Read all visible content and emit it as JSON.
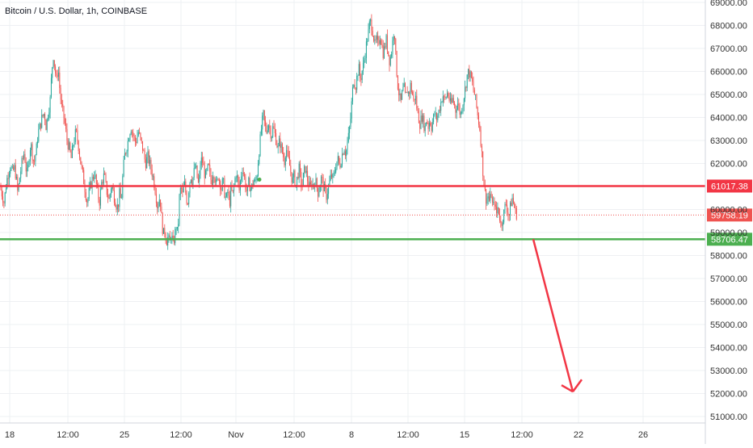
{
  "header": {
    "title": "Bitcoin / U.S. Dollar, 1h, COINBASE"
  },
  "colors": {
    "up": "#26a69a",
    "down": "#ef5350",
    "resistance": "#f23645",
    "support": "#4caf50",
    "grid": "#eef0f3",
    "axis_text": "#333333",
    "current_price_label": "#ef5350"
  },
  "chart_data": {
    "type": "candlestick",
    "title": "Bitcoin / U.S. Dollar, 1h, COINBASE",
    "xlabel": "",
    "ylabel": "",
    "ylim": [
      50800,
      69200
    ],
    "grid": true,
    "x_ticks": [
      "18",
      "12:00",
      "25",
      "12:00",
      "Nov",
      "12:00",
      "8",
      "12:00",
      "15",
      "12:00",
      "22",
      "26"
    ],
    "y_ticks": [
      {
        "value": 51000,
        "label": "51000.00"
      },
      {
        "value": 52000,
        "label": "52000.00"
      },
      {
        "value": 53000,
        "label": "53000.00"
      },
      {
        "value": 54000,
        "label": "54000.00"
      },
      {
        "value": 55000,
        "label": "55000.00"
      },
      {
        "value": 56000,
        "label": "56000.00"
      },
      {
        "value": 57000,
        "label": "57000.00"
      },
      {
        "value": 58000,
        "label": "58000.00"
      },
      {
        "value": 59000,
        "label": "59000.00"
      },
      {
        "value": 60000,
        "label": "60000.00"
      },
      {
        "value": 62000,
        "label": "62000.00"
      },
      {
        "value": 63000,
        "label": "63000.00"
      },
      {
        "value": 64000,
        "label": "64000.00"
      },
      {
        "value": 65000,
        "label": "65000.00"
      },
      {
        "value": 66000,
        "label": "66000.00"
      },
      {
        "value": 67000,
        "label": "67000.00"
      },
      {
        "value": 68000,
        "label": "68000.00"
      },
      {
        "value": 69000,
        "label": "69000.00"
      }
    ],
    "price_path": [
      [
        0,
        61000
      ],
      [
        3,
        60600
      ],
      [
        5,
        60300
      ],
      [
        8,
        61200
      ],
      [
        11,
        61700
      ],
      [
        13,
        61900
      ],
      [
        15,
        61600
      ],
      [
        18,
        61800
      ],
      [
        20,
        61400
      ],
      [
        22,
        60700
      ],
      [
        24,
        61300
      ],
      [
        27,
        62000
      ],
      [
        30,
        62500
      ],
      [
        32,
        61800
      ],
      [
        34,
        61500
      ],
      [
        36,
        62300
      ],
      [
        38,
        62900
      ],
      [
        40,
        62400
      ],
      [
        42,
        62000
      ],
      [
        45,
        62600
      ],
      [
        47,
        63300
      ],
      [
        50,
        63700
      ],
      [
        52,
        64000
      ],
      [
        55,
        64200
      ],
      [
        57,
        63600
      ],
      [
        60,
        64300
      ],
      [
        62,
        64700
      ],
      [
        64,
        66000
      ],
      [
        66,
        66700
      ],
      [
        68,
        66100
      ],
      [
        70,
        65600
      ],
      [
        72,
        66200
      ],
      [
        74,
        65200
      ],
      [
        76,
        64500
      ],
      [
        78,
        64200
      ],
      [
        80,
        63800
      ],
      [
        83,
        63000
      ],
      [
        86,
        62600
      ],
      [
        88,
        62200
      ],
      [
        91,
        62900
      ],
      [
        94,
        63400
      ],
      [
        97,
        62800
      ],
      [
        100,
        62000
      ],
      [
        103,
        61400
      ],
      [
        106,
        60700
      ],
      [
        108,
        60300
      ],
      [
        111,
        60900
      ],
      [
        114,
        61300
      ],
      [
        117,
        61600
      ],
      [
        120,
        60900
      ],
      [
        123,
        60300
      ],
      [
        126,
        61200
      ],
      [
        129,
        61500
      ],
      [
        132,
        60800
      ],
      [
        135,
        60400
      ],
      [
        138,
        61100
      ],
      [
        141,
        60600
      ],
      [
        144,
        60200
      ],
      [
        146,
        60100
      ],
      [
        148,
        60700
      ],
      [
        150,
        60300
      ],
      [
        152,
        61500
      ],
      [
        154,
        62300
      ],
      [
        156,
        62600
      ],
      [
        158,
        62900
      ],
      [
        160,
        63300
      ],
      [
        162,
        63600
      ],
      [
        165,
        63200
      ],
      [
        168,
        62900
      ],
      [
        171,
        63400
      ],
      [
        174,
        63000
      ],
      [
        177,
        62600
      ],
      [
        180,
        62000
      ],
      [
        183,
        62300
      ],
      [
        186,
        61900
      ],
      [
        189,
        61500
      ],
      [
        192,
        60900
      ],
      [
        195,
        60100
      ],
      [
        198,
        60600
      ],
      [
        200,
        59600
      ],
      [
        202,
        58900
      ],
      [
        204,
        59100
      ],
      [
        206,
        58600
      ],
      [
        208,
        58800
      ],
      [
        210,
        58500
      ],
      [
        212,
        59000
      ],
      [
        214,
        58400
      ],
      [
        216,
        58800
      ],
      [
        218,
        59300
      ],
      [
        220,
        58900
      ],
      [
        222,
        60500
      ],
      [
        224,
        61000
      ],
      [
        226,
        60600
      ],
      [
        228,
        61200
      ],
      [
        230,
        60700
      ],
      [
        232,
        60200
      ],
      [
        234,
        61000
      ],
      [
        236,
        61500
      ],
      [
        238,
        61200
      ],
      [
        240,
        61600
      ],
      [
        242,
        61900
      ],
      [
        244,
        61400
      ],
      [
        246,
        61000
      ],
      [
        248,
        62000
      ],
      [
        250,
        62200
      ],
      [
        252,
        61800
      ],
      [
        254,
        61400
      ],
      [
        256,
        61600
      ],
      [
        258,
        61900
      ],
      [
        260,
        61400
      ],
      [
        262,
        61200
      ],
      [
        264,
        61700
      ],
      [
        266,
        61400
      ],
      [
        268,
        61000
      ],
      [
        270,
        61500
      ],
      [
        272,
        61200
      ],
      [
        274,
        60900
      ],
      [
        276,
        61300
      ],
      [
        278,
        60700
      ],
      [
        280,
        60400
      ],
      [
        282,
        60800
      ],
      [
        284,
        60200
      ],
      [
        286,
        60900
      ],
      [
        288,
        60600
      ],
      [
        290,
        61100
      ],
      [
        292,
        61600
      ],
      [
        294,
        61300
      ],
      [
        296,
        60800
      ],
      [
        298,
        61400
      ],
      [
        300,
        61800
      ],
      [
        302,
        61500
      ],
      [
        304,
        61000
      ],
      [
        306,
        60700
      ],
      [
        308,
        61200
      ],
      [
        310,
        60900
      ],
      [
        312,
        61000
      ],
      [
        314,
        61300
      ],
      [
        316,
        61100
      ],
      [
        318,
        61500
      ],
      [
        320,
        62300
      ],
      [
        322,
        63000
      ],
      [
        324,
        63700
      ],
      [
        326,
        64100
      ],
      [
        328,
        63600
      ],
      [
        330,
        63400
      ],
      [
        332,
        63800
      ],
      [
        334,
        63500
      ],
      [
        336,
        63200
      ],
      [
        338,
        63600
      ],
      [
        340,
        63300
      ],
      [
        342,
        63000
      ],
      [
        344,
        62600
      ],
      [
        346,
        63000
      ],
      [
        348,
        62700
      ],
      [
        350,
        62400
      ],
      [
        352,
        62100
      ],
      [
        354,
        62700
      ],
      [
        356,
        62300
      ],
      [
        358,
        62000
      ],
      [
        360,
        61600
      ],
      [
        362,
        61200
      ],
      [
        364,
        61500
      ],
      [
        366,
        61000
      ],
      [
        368,
        61400
      ],
      [
        370,
        61800
      ],
      [
        372,
        61300
      ],
      [
        374,
        61000
      ],
      [
        376,
        61600
      ],
      [
        378,
        61800
      ],
      [
        380,
        61400
      ],
      [
        382,
        61100
      ],
      [
        384,
        60900
      ],
      [
        386,
        61200
      ],
      [
        388,
        61000
      ],
      [
        390,
        61300
      ],
      [
        392,
        61000
      ],
      [
        394,
        60700
      ],
      [
        396,
        61100
      ],
      [
        398,
        61400
      ],
      [
        400,
        61000
      ],
      [
        402,
        60800
      ],
      [
        404,
        60600
      ],
      [
        406,
        60900
      ],
      [
        408,
        61200
      ],
      [
        410,
        61500
      ],
      [
        412,
        61300
      ],
      [
        414,
        61600
      ],
      [
        416,
        62000
      ],
      [
        418,
        62200
      ],
      [
        420,
        61900
      ],
      [
        422,
        62100
      ],
      [
        424,
        62500
      ],
      [
        426,
        62700
      ],
      [
        428,
        62400
      ],
      [
        430,
        62900
      ],
      [
        432,
        63300
      ],
      [
        434,
        64000
      ],
      [
        436,
        65000
      ],
      [
        438,
        65700
      ],
      [
        440,
        65300
      ],
      [
        442,
        65800
      ],
      [
        444,
        66200
      ],
      [
        446,
        65600
      ],
      [
        448,
        66000
      ],
      [
        450,
        66300
      ],
      [
        452,
        66800
      ],
      [
        454,
        67300
      ],
      [
        456,
        67700
      ],
      [
        458,
        68200
      ],
      [
        460,
        68000
      ],
      [
        462,
        67600
      ],
      [
        464,
        67100
      ],
      [
        466,
        67400
      ],
      [
        468,
        67100
      ],
      [
        470,
        67600
      ],
      [
        472,
        67300
      ],
      [
        474,
        66800
      ],
      [
        476,
        67000
      ],
      [
        478,
        67400
      ],
      [
        480,
        66900
      ],
      [
        482,
        66500
      ],
      [
        484,
        66700
      ],
      [
        486,
        67300
      ],
      [
        488,
        68000
      ],
      [
        490,
        66500
      ],
      [
        492,
        65500
      ],
      [
        494,
        65000
      ],
      [
        496,
        64600
      ],
      [
        498,
        65100
      ],
      [
        500,
        65300
      ],
      [
        502,
        64800
      ],
      [
        504,
        65200
      ],
      [
        506,
        65000
      ],
      [
        508,
        65400
      ],
      [
        510,
        65100
      ],
      [
        512,
        64700
      ],
      [
        514,
        65000
      ],
      [
        516,
        64400
      ],
      [
        518,
        64000
      ],
      [
        520,
        63700
      ],
      [
        522,
        64100
      ],
      [
        524,
        63800
      ],
      [
        526,
        63500
      ],
      [
        528,
        64000
      ],
      [
        530,
        63600
      ],
      [
        532,
        63900
      ],
      [
        534,
        63600
      ],
      [
        536,
        63900
      ],
      [
        538,
        64200
      ],
      [
        540,
        63900
      ],
      [
        542,
        64100
      ],
      [
        544,
        64400
      ],
      [
        546,
        64700
      ],
      [
        548,
        65000
      ],
      [
        550,
        64700
      ],
      [
        552,
        64900
      ],
      [
        554,
        65100
      ],
      [
        556,
        64800
      ],
      [
        558,
        64500
      ],
      [
        560,
        64800
      ],
      [
        562,
        64600
      ],
      [
        564,
        64300
      ],
      [
        566,
        64700
      ],
      [
        568,
        64400
      ],
      [
        570,
        64100
      ],
      [
        572,
        64500
      ],
      [
        574,
        64900
      ],
      [
        576,
        65300
      ],
      [
        578,
        65800
      ],
      [
        580,
        66000
      ],
      [
        582,
        65800
      ],
      [
        584,
        65600
      ],
      [
        586,
        65200
      ],
      [
        588,
        64900
      ],
      [
        590,
        64400
      ],
      [
        592,
        63900
      ],
      [
        594,
        63500
      ],
      [
        596,
        62600
      ],
      [
        598,
        61500
      ],
      [
        600,
        60800
      ],
      [
        602,
        60400
      ],
      [
        604,
        60600
      ],
      [
        606,
        60300
      ],
      [
        608,
        60700
      ],
      [
        610,
        60000
      ],
      [
        612,
        60400
      ],
      [
        614,
        59700
      ],
      [
        616,
        60100
      ],
      [
        618,
        59800
      ],
      [
        620,
        59300
      ],
      [
        622,
        59600
      ],
      [
        624,
        59900
      ],
      [
        626,
        60300
      ],
      [
        628,
        60000
      ],
      [
        630,
        59700
      ],
      [
        632,
        60200
      ],
      [
        634,
        60500
      ],
      [
        636,
        60200
      ],
      [
        638,
        59900
      ],
      [
        640,
        59758
      ]
    ],
    "horizontal_levels": [
      {
        "price": 61017.38,
        "label": "61017.38",
        "color": "#f23645",
        "style": "solid"
      },
      {
        "price": 59758.19,
        "label": "59758.19",
        "color": "#ef5350",
        "style": "dotted"
      },
      {
        "price": 58706.47,
        "label": "58706.47",
        "color": "#4caf50",
        "style": "solid"
      }
    ],
    "projection_arrow": {
      "from": [
        660,
        58706.47
      ],
      "to": [
        709,
        52080
      ],
      "color": "#f23645"
    },
    "signal_dot": {
      "x": 321,
      "price": 61300,
      "color": "#4caf50"
    }
  }
}
